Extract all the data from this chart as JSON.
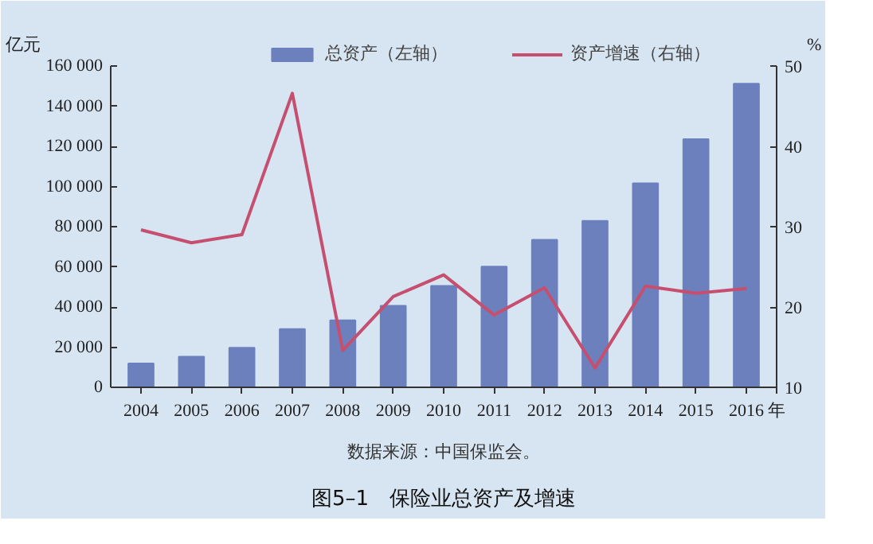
{
  "chart_data": {
    "type": "bar",
    "title": "图5–1　保险业总资产及增速",
    "xlabel": "年",
    "ylabel": "亿元",
    "y2label": "%",
    "annotations": [
      "数据来源：中国保监会。"
    ],
    "categories": [
      "2004",
      "2005",
      "2006",
      "2007",
      "2008",
      "2009",
      "2010",
      "2011",
      "2012",
      "2013",
      "2014",
      "2015",
      "2016"
    ],
    "series": [
      {
        "name": "总资产（左轴）",
        "color": "#6b80bd",
        "values": [
          11900,
          15200,
          19700,
          29000,
          33400,
          40600,
          50500,
          60100,
          73500,
          82900,
          101600,
          123600,
          151200
        ]
      },
      {
        "name": "资产增速（右轴）",
        "type": "line",
        "axis": "y2",
        "color": "#c64f70",
        "values": [
          29.6,
          28.0,
          29.0,
          46.6,
          14.6,
          21.3,
          24.0,
          19.0,
          22.4,
          12.4,
          22.6,
          21.7,
          22.3
        ]
      }
    ],
    "ylim": [
      0,
      160000
    ],
    "yticks": [
      0,
      {
        "value": 20000,
        "label": "20 000"
      },
      {
        "value": 40000,
        "label": "40 000"
      },
      {
        "value": 60000,
        "label": "60 000"
      },
      {
        "value": 80000,
        "label": "80 000"
      },
      {
        "value": 100000,
        "label": "100 000"
      },
      {
        "value": 120000,
        "label": "120 000"
      },
      {
        "value": 140000,
        "label": "140 000"
      },
      {
        "value": 160000,
        "label": "160 000"
      }
    ],
    "y2lim": [
      10,
      50
    ],
    "y2ticks": [
      10,
      20,
      30,
      40,
      50
    ],
    "legend": "top",
    "grid": false
  }
}
